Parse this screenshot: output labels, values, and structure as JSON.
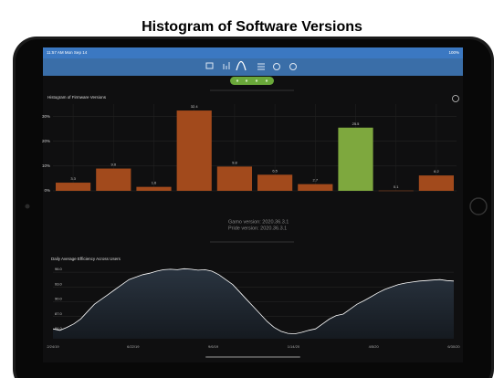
{
  "header": {
    "title": "Histogram of Software Versions"
  },
  "status_bar": {
    "time": "11:57 AM  Mon Sep 14",
    "battery": "100%"
  },
  "histogram": {
    "type": "bar",
    "title": "Histogram of Firmware Versions",
    "values": [
      3.3,
      9.0,
      1.6,
      32.4,
      9.8,
      6.5,
      2.7,
      25.5,
      0.1,
      6.2
    ],
    "value_labels": [
      "3.3",
      "9.0",
      "1.6",
      "32.4",
      "9.8",
      "6.5",
      "2.7",
      "25.5",
      "0.1",
      "6.2"
    ],
    "color": "#a24a1c",
    "highlight_color": "#7ea83e",
    "highlight_index": 7,
    "ylim": [
      0,
      35
    ],
    "yticks": [
      {
        "value": 0,
        "label": "0%"
      },
      {
        "value": 10,
        "label": "10%"
      },
      {
        "value": 20,
        "label": "20%"
      },
      {
        "value": 30,
        "label": "30%"
      }
    ]
  },
  "versions": {
    "gamo": "Gamo version: 2020.36.3.1",
    "pride": "Pride version: 2020.36.3.1"
  },
  "line_chart": {
    "type": "line",
    "title": "Daily Average Efficiency Across Users",
    "values": [
      84.5,
      84.2,
      84.8,
      85.5,
      86.5,
      88,
      89.5,
      90.5,
      91.5,
      92.5,
      93.5,
      94.5,
      95,
      95.5,
      95.8,
      96.2,
      96.5,
      96.6,
      96.5,
      96.7,
      96.6,
      96.4,
      96.5,
      96.2,
      95.5,
      94.5,
      93.5,
      92,
      90.5,
      89,
      87.5,
      86,
      84.8,
      84,
      83.6,
      83.5,
      83.8,
      84.2,
      84.5,
      85.5,
      86.5,
      87.2,
      87.5,
      88.5,
      89.5,
      90.2,
      91,
      91.8,
      92.5,
      93,
      93.5,
      93.8,
      94,
      94.2,
      94.3,
      94.4,
      94.5,
      94.3,
      94.2
    ],
    "color": "#ffffff",
    "ylim": [
      82.5,
      97.5
    ],
    "yticks": [
      {
        "value": 84,
        "label": "84.0"
      },
      {
        "value": 87,
        "label": "87.0"
      },
      {
        "value": 90,
        "label": "90.0"
      },
      {
        "value": 93,
        "label": "93.0"
      },
      {
        "value": 96,
        "label": "96.0"
      }
    ],
    "x_labels": [
      "2/24/19",
      "6/22/19",
      "9/6/19",
      "1/14/20",
      "4/5/20",
      "6/30/20"
    ]
  }
}
